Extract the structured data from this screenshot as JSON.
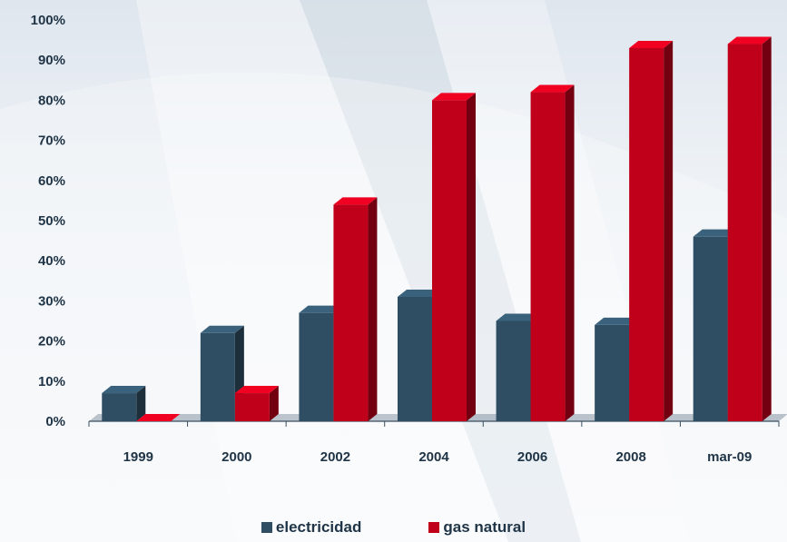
{
  "chart_data": {
    "type": "bar",
    "categories": [
      "1999",
      "2000",
      "2002",
      "2004",
      "2006",
      "2008",
      "mar-09"
    ],
    "series": [
      {
        "name": "electricidad",
        "values": [
          7,
          22,
          27,
          31,
          25,
          24,
          46
        ],
        "color": "#2f4e63"
      },
      {
        "name": "gas natural",
        "values": [
          0,
          7,
          54,
          80,
          82,
          93,
          94
        ],
        "color": "#c0001a"
      }
    ],
    "ylim": [
      0,
      100
    ],
    "yticks": [
      "0%",
      "10%",
      "20%",
      "30%",
      "40%",
      "50%",
      "60%",
      "70%",
      "80%",
      "90%",
      "100%"
    ],
    "legend_position": "bottom",
    "grid": false,
    "title": "",
    "xlabel": "",
    "ylabel": ""
  }
}
